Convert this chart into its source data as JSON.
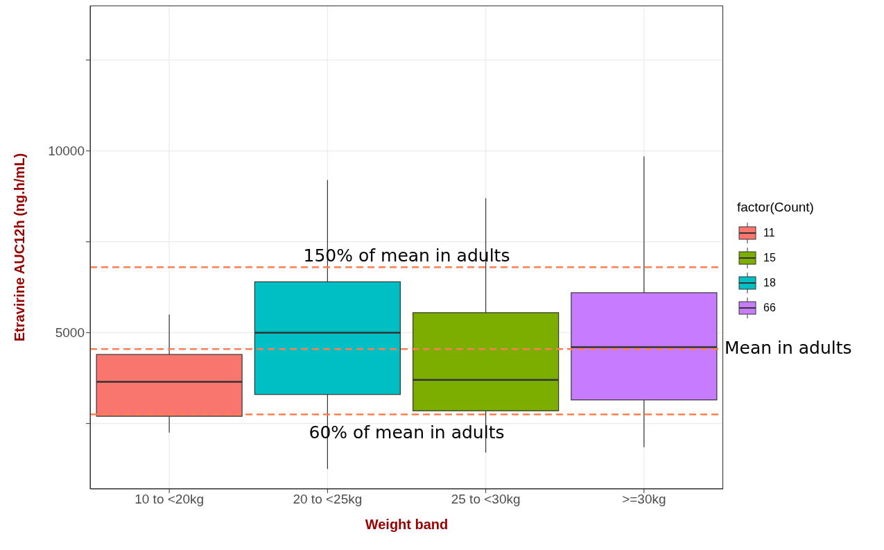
{
  "chart_data": {
    "type": "box",
    "xlabel": "Weight band",
    "ylabel": "Etravirine AUC12h (ng.h/mL)",
    "legend_title": "factor(Count)",
    "categories": [
      "10 to <20kg",
      "20 to <25kg",
      "25 to <30kg",
      ">=30kg"
    ],
    "series": [
      {
        "name": "11",
        "color": "#f8766d",
        "boxes": [
          {
            "low": 2250,
            "q1": 2700,
            "median": 3650,
            "q3": 4400,
            "high": 5500
          },
          null,
          null,
          null
        ]
      },
      {
        "name": "15",
        "color": "#7cae00",
        "boxes": [
          null,
          null,
          {
            "low": 1700,
            "q1": 2850,
            "median": 3700,
            "q3": 5550,
            "high": 8700
          },
          null
        ]
      },
      {
        "name": "18",
        "color": "#00bfc4",
        "boxes": [
          null,
          {
            "low": 1250,
            "q1": 3300,
            "median": 5000,
            "q3": 6400,
            "high": 9200
          },
          null,
          null
        ]
      },
      {
        "name": "66",
        "color": "#c77cff",
        "boxes": [
          null,
          null,
          null,
          {
            "low": 1850,
            "q1": 3150,
            "median": 4600,
            "q3": 6100,
            "high": 9850
          }
        ]
      }
    ],
    "ylim": [
      700,
      14000
    ],
    "yticks": [
      {
        "value": 2500,
        "label": null
      },
      5000,
      {
        "value": 7500,
        "label": null
      },
      10000,
      {
        "value": 12500,
        "label": null
      }
    ],
    "ref_lines": [
      {
        "axis": "y",
        "value": 6800,
        "label": "150% of mean in adults",
        "color": "#ff7f50",
        "line_style": "dashed"
      },
      {
        "axis": "y",
        "value": 4550,
        "label": "Mean in adults",
        "color": "#ff7f50",
        "line_style": "dashed"
      },
      {
        "axis": "y",
        "value": 2750,
        "label": "60% of mean in adults",
        "color": "#ff7f50",
        "line_style": "dashed"
      }
    ],
    "grid": true,
    "legend": "right"
  }
}
